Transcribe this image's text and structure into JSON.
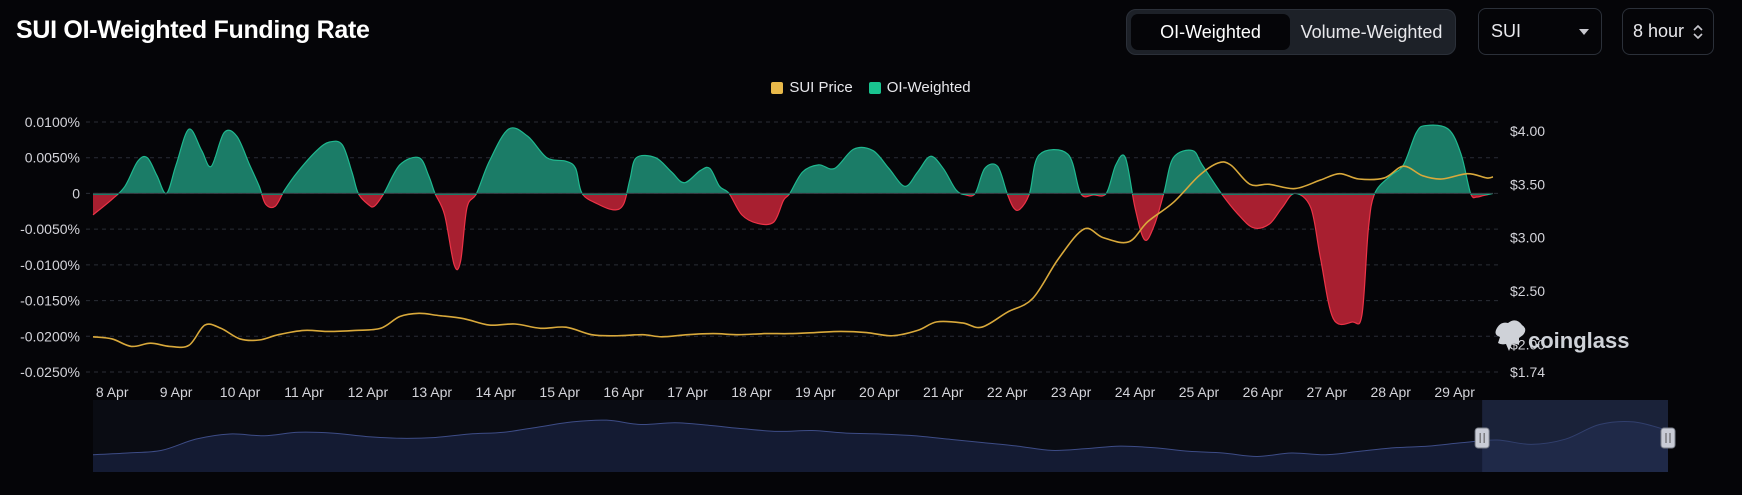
{
  "header": {
    "title": "SUI OI-Weighted Funding Rate",
    "toggle": {
      "options": [
        "OI-Weighted",
        "Volume-Weighted"
      ],
      "active": "OI-Weighted"
    },
    "coin_select": "SUI",
    "interval_select": "8 hour"
  },
  "icons": {
    "dropdown": "chevron-down-icon",
    "stepper": "up-down-chevron-icon",
    "brand": "coinglass-logo-icon"
  },
  "watermark": "coinglass",
  "colors": {
    "positive": "#1b7c67",
    "positive_line": "#1fb88f",
    "negative": "#a81f30",
    "negative_line": "#ec3347",
    "price": "#d9a93b",
    "navigator": "#28345a"
  },
  "chart_data": {
    "type": "area",
    "x_ticks": [
      "8 Apr",
      "9 Apr",
      "10 Apr",
      "11 Apr",
      "12 Apr",
      "13 Apr",
      "14 Apr",
      "15 Apr",
      "16 Apr",
      "17 Apr",
      "18 Apr",
      "19 Apr",
      "20 Apr",
      "21 Apr",
      "22 Apr",
      "23 Apr",
      "24 Apr",
      "25 Apr",
      "26 Apr",
      "27 Apr",
      "28 Apr",
      "29 Apr"
    ],
    "y_left_ticks": [
      "0.0100%",
      "0.0050%",
      "0",
      "-0.0050%",
      "-0.0100%",
      "-0.0150%",
      "-0.0200%",
      "-0.0250%"
    ],
    "y_left_range": [
      -0.025,
      0.01
    ],
    "y_right_ticks": [
      "$4.00",
      "$3.50",
      "$3.00",
      "$2.50",
      "$2.00",
      "$1.74"
    ],
    "y_right_range": [
      1.74,
      4.0
    ],
    "legend": [
      "SUI Price",
      "OI-Weighted"
    ],
    "x_range": [
      7.7,
      29.6
    ],
    "series": [
      {
        "name": "OI-Weighted",
        "unit": "%",
        "points": [
          [
            7.7,
            -0.003
          ],
          [
            8.0,
            -0.0008
          ],
          [
            8.2,
            0.001
          ],
          [
            8.4,
            0.0045
          ],
          [
            8.55,
            0.005
          ],
          [
            8.7,
            0.0025
          ],
          [
            8.85,
            0.0
          ],
          [
            9.0,
            0.004
          ],
          [
            9.2,
            0.009
          ],
          [
            9.4,
            0.006
          ],
          [
            9.55,
            0.0038
          ],
          [
            9.75,
            0.0085
          ],
          [
            9.95,
            0.008
          ],
          [
            10.15,
            0.004
          ],
          [
            10.3,
            0.001
          ],
          [
            10.4,
            -0.0015
          ],
          [
            10.55,
            -0.0018
          ],
          [
            10.7,
            0.0005
          ],
          [
            10.9,
            0.003
          ],
          [
            11.2,
            0.006
          ],
          [
            11.4,
            0.0072
          ],
          [
            11.6,
            0.0068
          ],
          [
            11.75,
            0.003
          ],
          [
            11.85,
            0.0
          ],
          [
            12.0,
            -0.0015
          ],
          [
            12.1,
            -0.0018
          ],
          [
            12.25,
            0.0
          ],
          [
            12.5,
            0.004
          ],
          [
            12.8,
            0.005
          ],
          [
            12.95,
            0.0025
          ],
          [
            13.05,
            0.0
          ],
          [
            13.2,
            -0.003
          ],
          [
            13.35,
            -0.01
          ],
          [
            13.45,
            -0.0095
          ],
          [
            13.55,
            -0.002
          ],
          [
            13.7,
            0.0
          ],
          [
            13.9,
            0.0045
          ],
          [
            14.2,
            0.009
          ],
          [
            14.5,
            0.008
          ],
          [
            14.8,
            0.005
          ],
          [
            15.1,
            0.0045
          ],
          [
            15.25,
            0.0035
          ],
          [
            15.35,
            0.0
          ],
          [
            15.6,
            -0.0015
          ],
          [
            15.85,
            -0.0023
          ],
          [
            16.0,
            -0.0015
          ],
          [
            16.1,
            0.002
          ],
          [
            16.2,
            0.005
          ],
          [
            16.5,
            0.005
          ],
          [
            16.75,
            0.003
          ],
          [
            16.95,
            0.0015
          ],
          [
            17.2,
            0.0032
          ],
          [
            17.35,
            0.0035
          ],
          [
            17.5,
            0.001
          ],
          [
            17.65,
            0.0
          ],
          [
            17.85,
            -0.003
          ],
          [
            18.1,
            -0.0042
          ],
          [
            18.35,
            -0.004
          ],
          [
            18.5,
            -0.001
          ],
          [
            18.6,
            0.0
          ],
          [
            18.8,
            0.003
          ],
          [
            19.05,
            0.004
          ],
          [
            19.3,
            0.0035
          ],
          [
            19.6,
            0.0062
          ],
          [
            19.9,
            0.006
          ],
          [
            20.15,
            0.0035
          ],
          [
            20.4,
            0.001
          ],
          [
            20.6,
            0.003
          ],
          [
            20.8,
            0.0052
          ],
          [
            21.0,
            0.0035
          ],
          [
            21.2,
            0.0005
          ],
          [
            21.35,
            -0.0002
          ],
          [
            21.5,
            0.0
          ],
          [
            21.65,
            0.0035
          ],
          [
            21.85,
            0.0038
          ],
          [
            22.0,
            0.0
          ],
          [
            22.1,
            -0.002
          ],
          [
            22.2,
            -0.0022
          ],
          [
            22.35,
            0.0
          ],
          [
            22.5,
            0.0054
          ],
          [
            22.95,
            0.0055
          ],
          [
            23.15,
            0.0
          ],
          [
            23.35,
            -0.0002
          ],
          [
            23.55,
            0.0
          ],
          [
            23.7,
            0.004
          ],
          [
            23.85,
            0.005
          ],
          [
            24.0,
            -0.002
          ],
          [
            24.15,
            -0.0065
          ],
          [
            24.3,
            -0.0045
          ],
          [
            24.45,
            0.0
          ],
          [
            24.6,
            0.005
          ],
          [
            24.9,
            0.006
          ],
          [
            25.05,
            0.004
          ],
          [
            25.35,
            0.0
          ],
          [
            25.6,
            -0.0028
          ],
          [
            25.85,
            -0.0048
          ],
          [
            26.1,
            -0.0043
          ],
          [
            26.3,
            -0.002
          ],
          [
            26.5,
            0.0
          ],
          [
            26.75,
            -0.002
          ],
          [
            26.9,
            -0.009
          ],
          [
            27.1,
            -0.0175
          ],
          [
            27.4,
            -0.018
          ],
          [
            27.55,
            -0.017
          ],
          [
            27.65,
            -0.005
          ],
          [
            27.75,
            0.0
          ],
          [
            28.0,
            0.0025
          ],
          [
            28.2,
            0.004
          ],
          [
            28.4,
            0.0085
          ],
          [
            28.55,
            0.0095
          ],
          [
            28.9,
            0.009
          ],
          [
            29.1,
            0.0055
          ],
          [
            29.25,
            0.0
          ],
          [
            29.35,
            -0.0005
          ],
          [
            29.45,
            -0.0003
          ],
          [
            29.6,
            0.0
          ]
        ]
      },
      {
        "name": "SUI Price",
        "unit": "$",
        "points": [
          [
            7.7,
            2.07
          ],
          [
            8.0,
            2.05
          ],
          [
            8.3,
            1.98
          ],
          [
            8.6,
            2.01
          ],
          [
            8.9,
            1.98
          ],
          [
            9.2,
            1.99
          ],
          [
            9.45,
            2.18
          ],
          [
            9.7,
            2.15
          ],
          [
            10.0,
            2.05
          ],
          [
            10.3,
            2.04
          ],
          [
            10.6,
            2.09
          ],
          [
            11.0,
            2.13
          ],
          [
            11.4,
            2.12
          ],
          [
            11.8,
            2.13
          ],
          [
            12.2,
            2.15
          ],
          [
            12.5,
            2.26
          ],
          [
            12.8,
            2.29
          ],
          [
            13.1,
            2.27
          ],
          [
            13.5,
            2.24
          ],
          [
            13.9,
            2.18
          ],
          [
            14.3,
            2.19
          ],
          [
            14.7,
            2.15
          ],
          [
            15.1,
            2.16
          ],
          [
            15.5,
            2.09
          ],
          [
            15.9,
            2.08
          ],
          [
            16.3,
            2.09
          ],
          [
            16.6,
            2.07
          ],
          [
            17.0,
            2.09
          ],
          [
            17.4,
            2.1
          ],
          [
            17.8,
            2.09
          ],
          [
            18.2,
            2.1
          ],
          [
            18.6,
            2.1
          ],
          [
            19.0,
            2.11
          ],
          [
            19.4,
            2.12
          ],
          [
            19.8,
            2.11
          ],
          [
            20.2,
            2.08
          ],
          [
            20.6,
            2.13
          ],
          [
            20.9,
            2.21
          ],
          [
            21.3,
            2.2
          ],
          [
            21.6,
            2.16
          ],
          [
            22.0,
            2.3
          ],
          [
            22.4,
            2.43
          ],
          [
            22.8,
            2.8
          ],
          [
            23.2,
            3.08
          ],
          [
            23.5,
            3.0
          ],
          [
            23.9,
            2.96
          ],
          [
            24.2,
            3.15
          ],
          [
            24.6,
            3.33
          ],
          [
            25.0,
            3.58
          ],
          [
            25.3,
            3.7
          ],
          [
            25.5,
            3.68
          ],
          [
            25.8,
            3.5
          ],
          [
            26.1,
            3.5
          ],
          [
            26.5,
            3.46
          ],
          [
            26.9,
            3.54
          ],
          [
            27.2,
            3.6
          ],
          [
            27.5,
            3.55
          ],
          [
            27.9,
            3.56
          ],
          [
            28.2,
            3.67
          ],
          [
            28.5,
            3.58
          ],
          [
            28.8,
            3.55
          ],
          [
            29.2,
            3.6
          ],
          [
            29.5,
            3.56
          ],
          [
            29.6,
            3.57
          ]
        ]
      }
    ],
    "navigator": {
      "values": [
        20,
        22,
        25,
        38,
        44,
        42,
        46,
        45,
        41,
        39,
        40,
        44,
        46,
        52,
        58,
        60,
        55,
        57,
        54,
        50,
        47,
        48,
        45,
        44,
        42,
        38,
        34,
        30,
        25,
        27,
        30,
        28,
        24,
        22,
        18,
        22,
        20,
        24,
        28,
        30,
        34,
        37,
        32,
        38,
        55,
        58,
        48
      ],
      "selection_start_fraction": 0.882
    }
  }
}
